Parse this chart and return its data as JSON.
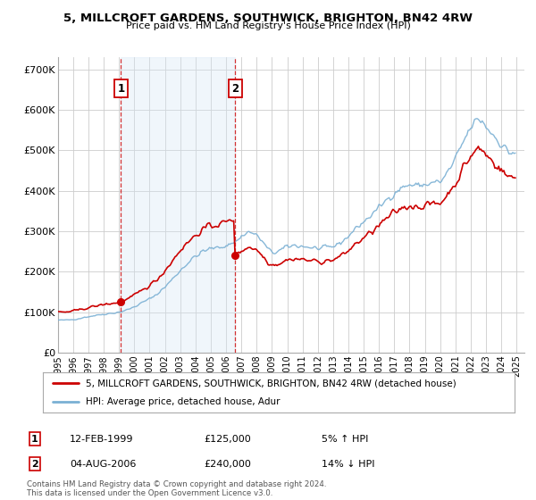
{
  "title": "5, MILLCROFT GARDENS, SOUTHWICK, BRIGHTON, BN42 4RW",
  "subtitle": "Price paid vs. HM Land Registry's House Price Index (HPI)",
  "ylabel_ticks": [
    "£0",
    "£100K",
    "£200K",
    "£300K",
    "£400K",
    "£500K",
    "£600K",
    "£700K"
  ],
  "ylim": [
    0,
    730000
  ],
  "xlim_start": 1995.0,
  "xlim_end": 2025.5,
  "sale1_date": 1999.12,
  "sale1_price": 125000,
  "sale1_label": "1",
  "sale2_date": 2006.59,
  "sale2_price": 240000,
  "sale2_label": "2",
  "line_color_property": "#cc0000",
  "line_color_hpi": "#7ab0d4",
  "fill_color": "#d6e8f5",
  "vline_color": "#cc0000",
  "annotation_box_color": "#cc0000",
  "legend_label_property": "5, MILLCROFT GARDENS, SOUTHWICK, BRIGHTON, BN42 4RW (detached house)",
  "legend_label_hpi": "HPI: Average price, detached house, Adur",
  "table_row1": [
    "1",
    "12-FEB-1999",
    "£125,000",
    "5% ↑ HPI"
  ],
  "table_row2": [
    "2",
    "04-AUG-2006",
    "£240,000",
    "14% ↓ HPI"
  ],
  "footnote": "Contains HM Land Registry data © Crown copyright and database right 2024.\nThis data is licensed under the Open Government Licence v3.0.",
  "background_color": "#ffffff",
  "grid_color": "#cccccc",
  "shade_alpha": 0.35
}
